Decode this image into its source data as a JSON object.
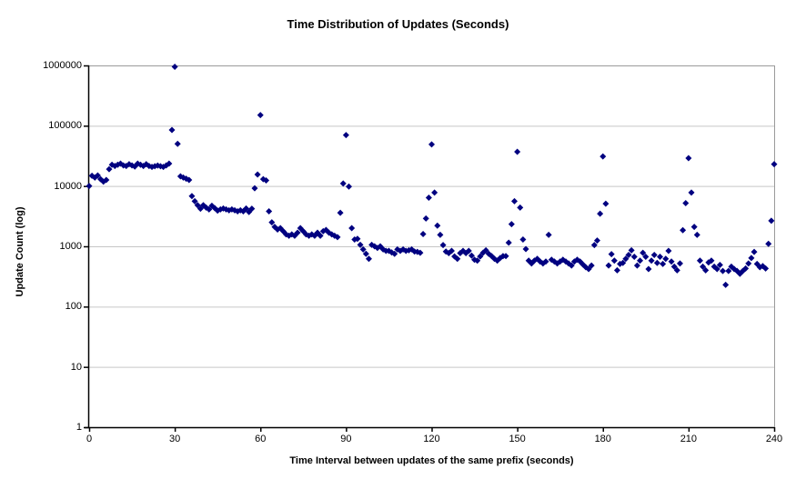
{
  "colors": {
    "marker": "#000080",
    "gridline": "#c6c6c6",
    "axis": "#000000",
    "border": "#9a9a9a",
    "background": "#ffffff"
  },
  "chart_data": {
    "type": "scatter",
    "title": "Time Distribution of Updates (Seconds)",
    "xlabel": "Time Interval between updates of the same prefix (seconds)",
    "ylabel": "Update Count (log)",
    "x_ticks": [
      0,
      30,
      60,
      90,
      120,
      150,
      180,
      210,
      240
    ],
    "y_ticks": [
      1,
      10,
      100,
      1000,
      10000,
      100000,
      1000000
    ],
    "xlim": [
      0,
      240
    ],
    "ylim": [
      1,
      1000000
    ],
    "y_scale": "log",
    "grid": "horizontal",
    "legend": "none",
    "marker": {
      "shape": "diamond",
      "size": 7
    },
    "points": [
      [
        0,
        10000
      ],
      [
        1,
        14800
      ],
      [
        2,
        13800
      ],
      [
        3,
        15000
      ],
      [
        4,
        13000
      ],
      [
        5,
        11800
      ],
      [
        6,
        12600
      ],
      [
        7,
        19000
      ],
      [
        8,
        22500
      ],
      [
        9,
        21500
      ],
      [
        10,
        22500
      ],
      [
        11,
        23500
      ],
      [
        12,
        22000
      ],
      [
        13,
        21500
      ],
      [
        14,
        23000
      ],
      [
        15,
        22000
      ],
      [
        16,
        21000
      ],
      [
        17,
        23500
      ],
      [
        18,
        22500
      ],
      [
        19,
        21500
      ],
      [
        20,
        23000
      ],
      [
        21,
        21500
      ],
      [
        22,
        20800
      ],
      [
        23,
        21300
      ],
      [
        24,
        21900
      ],
      [
        25,
        21300
      ],
      [
        26,
        20800
      ],
      [
        27,
        22000
      ],
      [
        28,
        23500
      ],
      [
        29,
        85000
      ],
      [
        30,
        950000
      ],
      [
        31,
        50000
      ],
      [
        32,
        14500
      ],
      [
        33,
        13800
      ],
      [
        34,
        13200
      ],
      [
        35,
        12600
      ],
      [
        36,
        6800
      ],
      [
        37,
        5600
      ],
      [
        38,
        4800
      ],
      [
        39,
        4200
      ],
      [
        40,
        4800
      ],
      [
        41,
        4400
      ],
      [
        42,
        4100
      ],
      [
        43,
        4700
      ],
      [
        44,
        4300
      ],
      [
        45,
        3900
      ],
      [
        46,
        4100
      ],
      [
        47,
        4250
      ],
      [
        48,
        4100
      ],
      [
        49,
        3950
      ],
      [
        50,
        4100
      ],
      [
        51,
        3950
      ],
      [
        52,
        3800
      ],
      [
        53,
        3950
      ],
      [
        54,
        3800
      ],
      [
        55,
        4250
      ],
      [
        56,
        3700
      ],
      [
        57,
        4200
      ],
      [
        58,
        9200
      ],
      [
        59,
        15500
      ],
      [
        60,
        150000
      ],
      [
        61,
        13000
      ],
      [
        62,
        12400
      ],
      [
        63,
        3800
      ],
      [
        64,
        2500
      ],
      [
        65,
        2100
      ],
      [
        66,
        1900
      ],
      [
        67,
        2000
      ],
      [
        68,
        1780
      ],
      [
        69,
        1580
      ],
      [
        70,
        1500
      ],
      [
        71,
        1580
      ],
      [
        72,
        1500
      ],
      [
        73,
        1680
      ],
      [
        74,
        2000
      ],
      [
        75,
        1780
      ],
      [
        76,
        1580
      ],
      [
        77,
        1500
      ],
      [
        78,
        1580
      ],
      [
        79,
        1500
      ],
      [
        80,
        1680
      ],
      [
        81,
        1500
      ],
      [
        82,
        1780
      ],
      [
        83,
        1870
      ],
      [
        84,
        1680
      ],
      [
        85,
        1580
      ],
      [
        86,
        1500
      ],
      [
        87,
        1420
      ],
      [
        88,
        3600
      ],
      [
        89,
        11000
      ],
      [
        90,
        70000
      ],
      [
        91,
        9800
      ],
      [
        92,
        2000
      ],
      [
        93,
        1300
      ],
      [
        94,
        1330
      ],
      [
        95,
        1060
      ],
      [
        96,
        890
      ],
      [
        97,
        750
      ],
      [
        98,
        620
      ],
      [
        99,
        1060
      ],
      [
        100,
        1000
      ],
      [
        101,
        940
      ],
      [
        102,
        1000
      ],
      [
        103,
        890
      ],
      [
        104,
        840
      ],
      [
        105,
        840
      ],
      [
        106,
        790
      ],
      [
        107,
        750
      ],
      [
        108,
        890
      ],
      [
        109,
        840
      ],
      [
        110,
        890
      ],
      [
        111,
        840
      ],
      [
        112,
        860
      ],
      [
        113,
        890
      ],
      [
        114,
        820
      ],
      [
        115,
        810
      ],
      [
        116,
        780
      ],
      [
        117,
        1600
      ],
      [
        118,
        2900
      ],
      [
        119,
        6400
      ],
      [
        120,
        49000
      ],
      [
        121,
        7800
      ],
      [
        122,
        2200
      ],
      [
        123,
        1550
      ],
      [
        124,
        1050
      ],
      [
        125,
        820
      ],
      [
        126,
        770
      ],
      [
        127,
        840
      ],
      [
        128,
        680
      ],
      [
        129,
        620
      ],
      [
        130,
        770
      ],
      [
        131,
        840
      ],
      [
        132,
        770
      ],
      [
        133,
        840
      ],
      [
        134,
        700
      ],
      [
        135,
        600
      ],
      [
        136,
        580
      ],
      [
        137,
        680
      ],
      [
        138,
        780
      ],
      [
        139,
        860
      ],
      [
        140,
        750
      ],
      [
        141,
        690
      ],
      [
        142,
        620
      ],
      [
        143,
        580
      ],
      [
        144,
        640
      ],
      [
        145,
        690
      ],
      [
        146,
        690
      ],
      [
        147,
        1150
      ],
      [
        148,
        2330
      ],
      [
        149,
        5600
      ],
      [
        150,
        37000
      ],
      [
        151,
        4400
      ],
      [
        152,
        1300
      ],
      [
        153,
        900
      ],
      [
        154,
        580
      ],
      [
        155,
        520
      ],
      [
        156,
        580
      ],
      [
        157,
        620
      ],
      [
        158,
        560
      ],
      [
        159,
        520
      ],
      [
        160,
        560
      ],
      [
        161,
        1550
      ],
      [
        162,
        600
      ],
      [
        163,
        560
      ],
      [
        164,
        520
      ],
      [
        165,
        560
      ],
      [
        166,
        600
      ],
      [
        167,
        560
      ],
      [
        168,
        520
      ],
      [
        169,
        480
      ],
      [
        170,
        560
      ],
      [
        171,
        600
      ],
      [
        172,
        560
      ],
      [
        173,
        500
      ],
      [
        174,
        450
      ],
      [
        175,
        420
      ],
      [
        176,
        480
      ],
      [
        177,
        1050
      ],
      [
        178,
        1250
      ],
      [
        179,
        3470
      ],
      [
        180,
        31000
      ],
      [
        181,
        5100
      ],
      [
        182,
        480
      ],
      [
        183,
        740
      ],
      [
        184,
        580
      ],
      [
        185,
        400
      ],
      [
        186,
        510
      ],
      [
        187,
        530
      ],
      [
        188,
        620
      ],
      [
        189,
        720
      ],
      [
        190,
        860
      ],
      [
        191,
        670
      ],
      [
        192,
        480
      ],
      [
        193,
        580
      ],
      [
        194,
        780
      ],
      [
        195,
        670
      ],
      [
        196,
        420
      ],
      [
        197,
        580
      ],
      [
        198,
        720
      ],
      [
        199,
        530
      ],
      [
        200,
        670
      ],
      [
        201,
        510
      ],
      [
        202,
        620
      ],
      [
        203,
        840
      ],
      [
        204,
        560
      ],
      [
        205,
        460
      ],
      [
        206,
        400
      ],
      [
        207,
        520
      ],
      [
        208,
        1850
      ],
      [
        209,
        5200
      ],
      [
        210,
        29000
      ],
      [
        211,
        7800
      ],
      [
        212,
        2100
      ],
      [
        213,
        1550
      ],
      [
        214,
        580
      ],
      [
        215,
        460
      ],
      [
        216,
        400
      ],
      [
        217,
        540
      ],
      [
        218,
        580
      ],
      [
        219,
        460
      ],
      [
        220,
        420
      ],
      [
        221,
        490
      ],
      [
        222,
        390
      ],
      [
        223,
        230
      ],
      [
        224,
        390
      ],
      [
        225,
        460
      ],
      [
        226,
        420
      ],
      [
        227,
        390
      ],
      [
        228,
        350
      ],
      [
        229,
        390
      ],
      [
        230,
        430
      ],
      [
        231,
        520
      ],
      [
        232,
        640
      ],
      [
        233,
        810
      ],
      [
        234,
        510
      ],
      [
        235,
        450
      ],
      [
        236,
        470
      ],
      [
        237,
        430
      ],
      [
        238,
        1100
      ],
      [
        239,
        2650
      ],
      [
        240,
        23000
      ]
    ]
  }
}
